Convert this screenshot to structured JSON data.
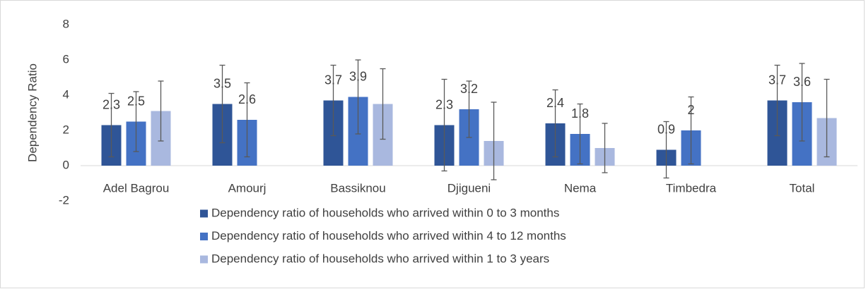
{
  "chart_data": {
    "type": "bar",
    "y_label": "Dependency Ratio",
    "categories": [
      "Adel Bagrou",
      "Amourj",
      "Bassiknou",
      "Djigueni",
      "Nema",
      "Timbedra",
      "Total"
    ],
    "series": [
      {
        "name": "Dependency ratio of households who arrived within 0 to 3 months",
        "color": "#2f5597",
        "values": [
          2.3,
          3.5,
          3.7,
          2.3,
          2.4,
          0.9,
          3.7
        ],
        "errors": [
          1.8,
          2.2,
          2.0,
          2.6,
          1.9,
          1.6,
          2.0
        ]
      },
      {
        "name": "Dependency ratio of households who arrived within 4 to 12 months",
        "color": "#4472c4",
        "values": [
          2.5,
          2.6,
          3.9,
          3.2,
          1.8,
          2,
          3.6
        ],
        "errors": [
          1.7,
          2.1,
          2.1,
          1.6,
          1.7,
          1.9,
          2.2
        ]
      },
      {
        "name": "Dependency ratio of households who arrived within 1 to 3 years",
        "color": "#a9b8df",
        "values": [
          3.1,
          null,
          3.5,
          1.4,
          1.0,
          null,
          2.7
        ],
        "errors": [
          1.7,
          null,
          2.0,
          2.2,
          1.4,
          null,
          2.2
        ]
      }
    ],
    "value_labels_series": [
      0,
      1
    ],
    "ylim": [
      -2,
      8
    ],
    "yticks": [
      -2,
      0,
      2,
      4,
      6,
      8
    ],
    "grid": false,
    "legend": "bottom"
  }
}
